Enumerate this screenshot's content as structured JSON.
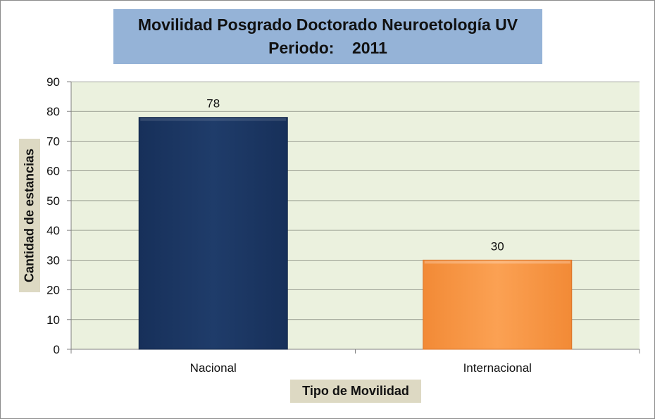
{
  "chart_data": {
    "type": "bar",
    "title_lines": [
      "Movilidad Posgrado Doctorado Neuroetología UV",
      "Periodo:    2011"
    ],
    "xlabel": "Tipo de Movilidad",
    "ylabel": "Cantidad de estancias",
    "categories": [
      "Nacional",
      "Internacional"
    ],
    "values": [
      78,
      30
    ],
    "data_labels": [
      "78",
      "30"
    ],
    "ylim": [
      0,
      90
    ],
    "yticks": [
      "0",
      "10",
      "20",
      "30",
      "40",
      "50",
      "60",
      "70",
      "80",
      "90"
    ],
    "grid": true,
    "legend": "none",
    "colors": {
      "bars": [
        "#1f3864",
        "#f79646"
      ],
      "plot_background": "#ebf1de",
      "title_background": "#95b3d7",
      "axis_title_background": "#ddd9c3",
      "gridline": "#000000"
    }
  }
}
